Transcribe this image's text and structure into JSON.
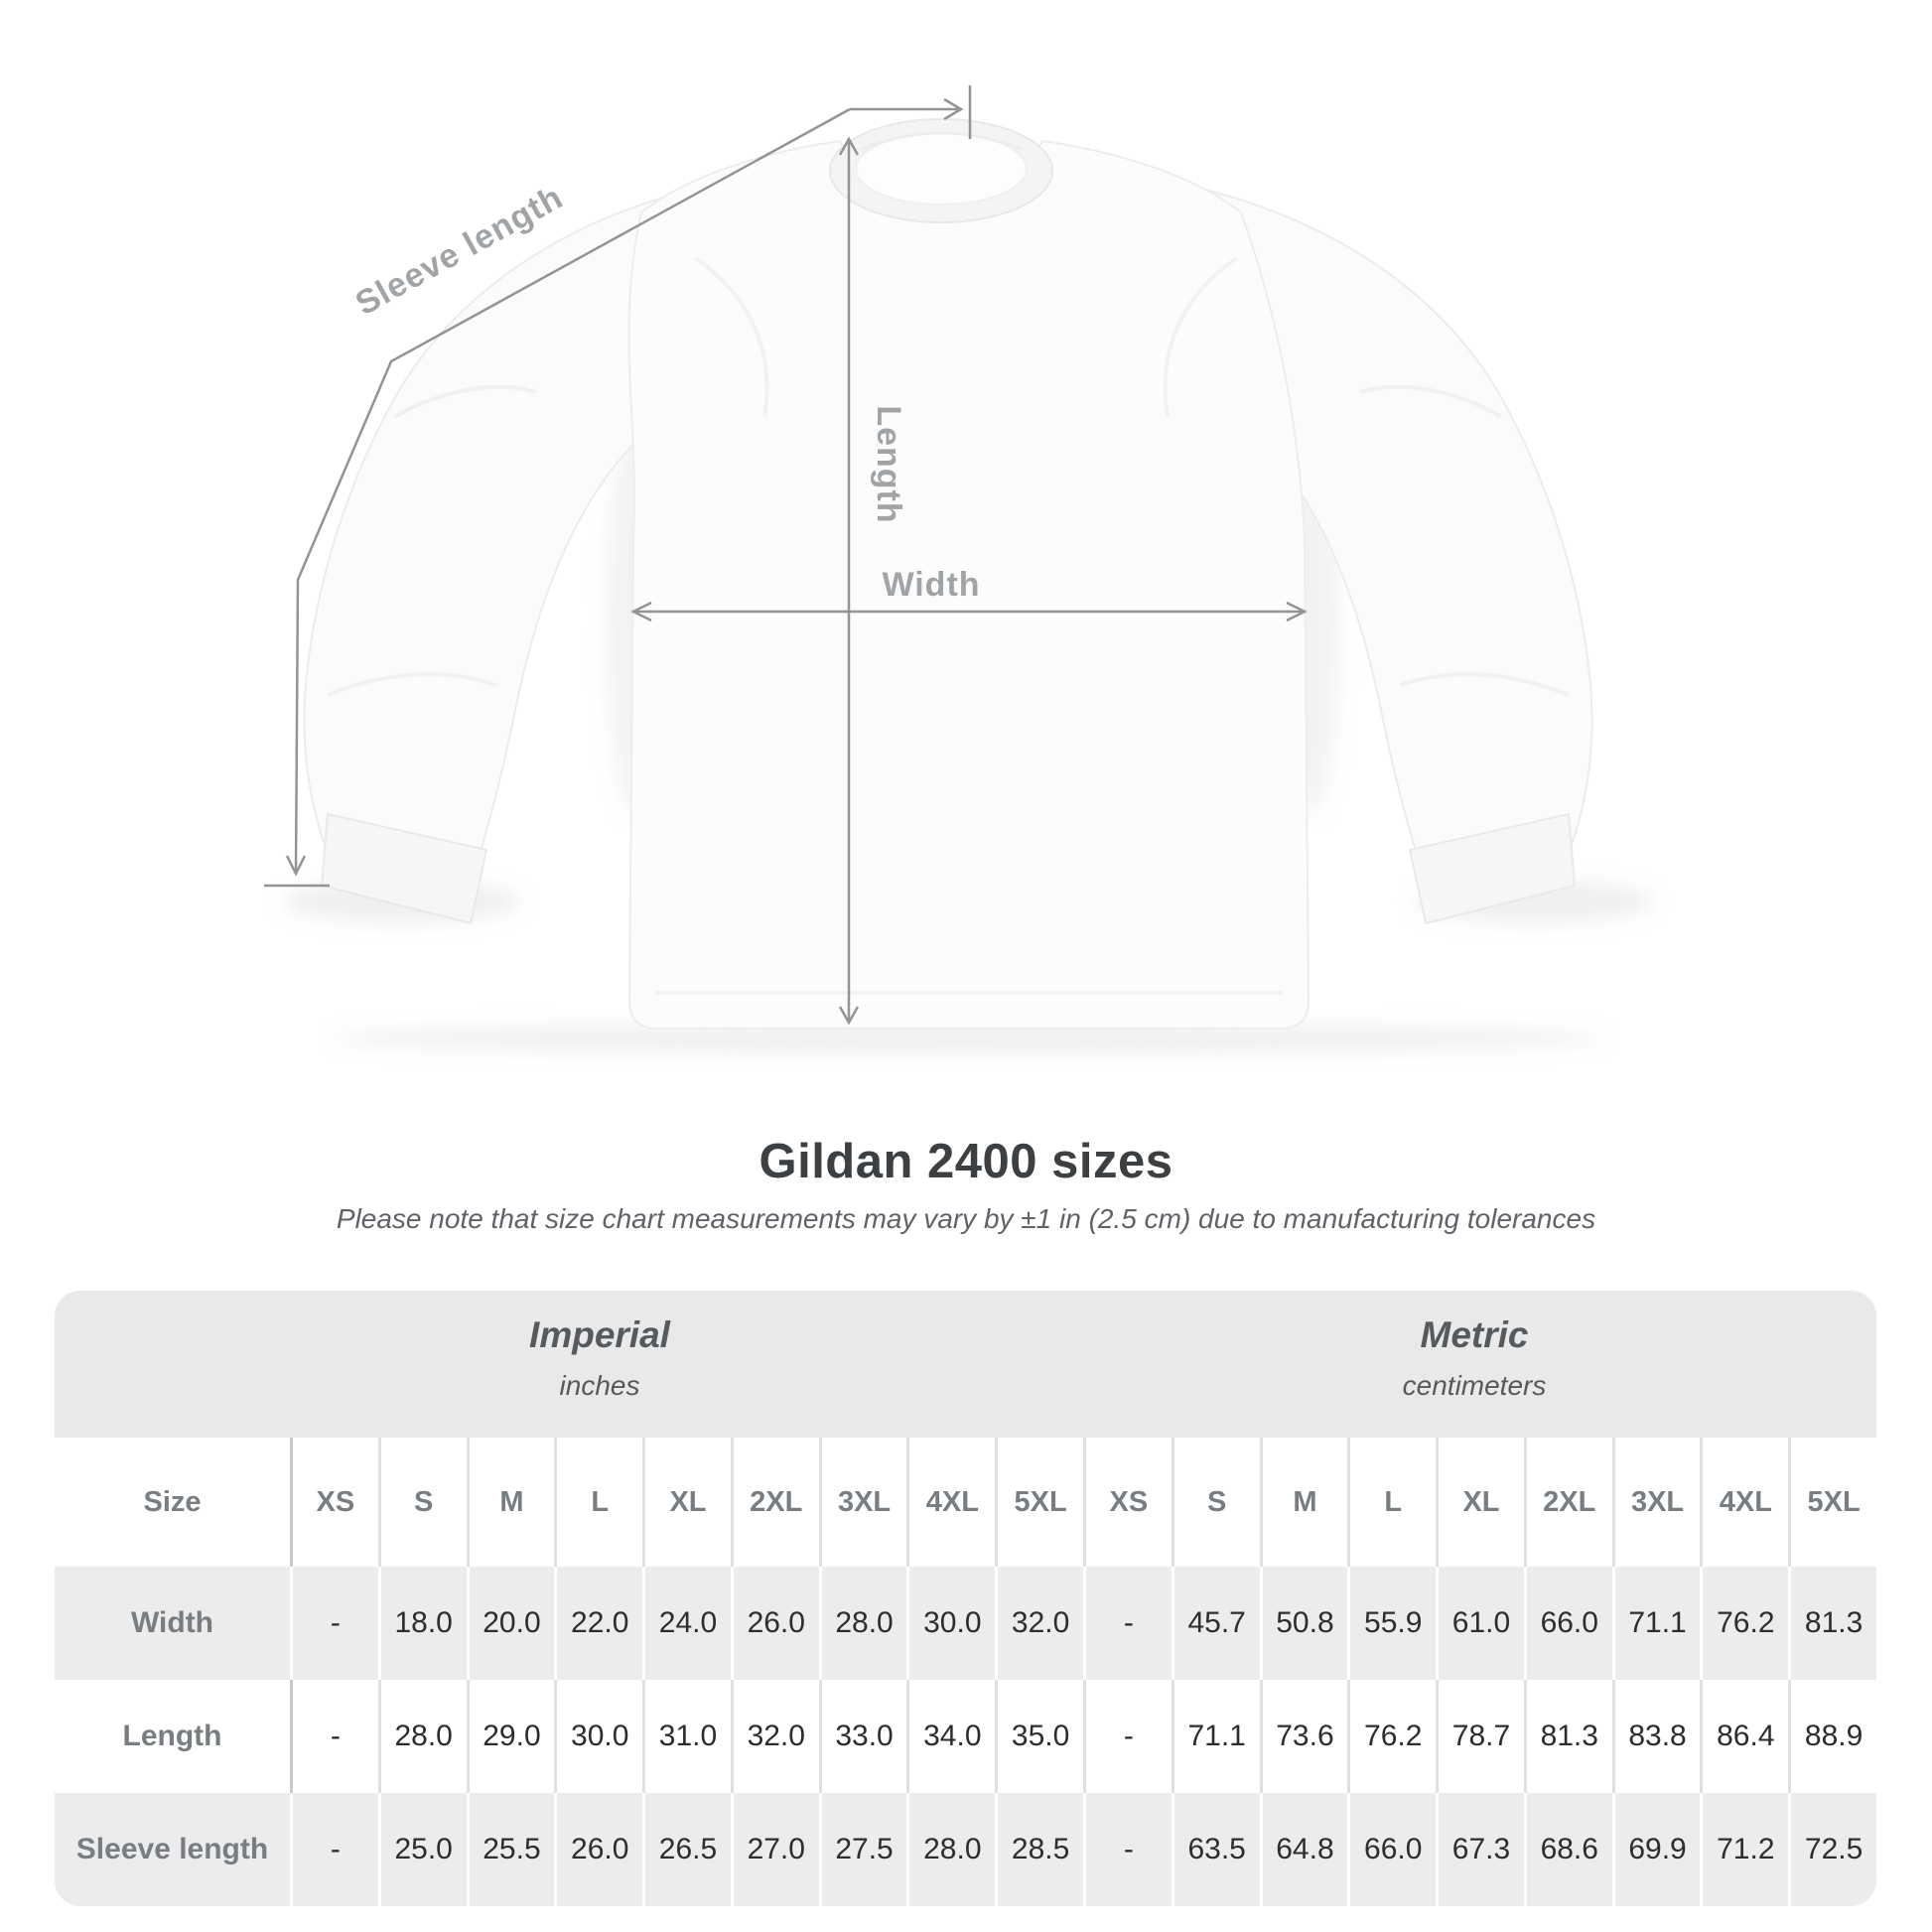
{
  "diagram": {
    "sleeve_length_label": "Sleeve length",
    "length_label": "Length",
    "width_label": "Width",
    "line_color": "#919497",
    "label_color": "#a0a4a7"
  },
  "title": "Gildan 2400 sizes",
  "subtitle": "Please note that size chart measurements may vary by ±1 in (2.5 cm) due to manufacturing tolerances",
  "table": {
    "unit_groups": [
      {
        "label": "Imperial",
        "sublabel": "inches"
      },
      {
        "label": "Metric",
        "sublabel": "centimeters"
      }
    ],
    "size_header_label": "Size",
    "sizes": [
      "XS",
      "S",
      "M",
      "L",
      "XL",
      "2XL",
      "3XL",
      "4XL",
      "5XL"
    ],
    "rows": [
      {
        "label": "Width",
        "imperial": [
          "-",
          "18.0",
          "20.0",
          "22.0",
          "24.0",
          "26.0",
          "28.0",
          "30.0",
          "32.0"
        ],
        "metric": [
          "-",
          "45.7",
          "50.8",
          "55.9",
          "61.0",
          "66.0",
          "71.1",
          "76.2",
          "81.3"
        ]
      },
      {
        "label": "Length",
        "imperial": [
          "-",
          "28.0",
          "29.0",
          "30.0",
          "31.0",
          "32.0",
          "33.0",
          "34.0",
          "35.0"
        ],
        "metric": [
          "-",
          "71.1",
          "73.6",
          "76.2",
          "78.7",
          "81.3",
          "83.8",
          "86.4",
          "88.9"
        ]
      },
      {
        "label": "Sleeve length",
        "imperial": [
          "-",
          "25.0",
          "25.5",
          "26.0",
          "26.5",
          "27.0",
          "27.5",
          "28.0",
          "28.5"
        ],
        "metric": [
          "-",
          "63.5",
          "64.8",
          "66.0",
          "67.3",
          "68.6",
          "69.9",
          "71.2",
          "72.5"
        ]
      }
    ]
  },
  "chart_data": {
    "type": "table",
    "title": "Gildan 2400 sizes",
    "columns": [
      "XS",
      "S",
      "M",
      "L",
      "XL",
      "2XL",
      "3XL",
      "4XL",
      "5XL"
    ],
    "series": [
      {
        "name": "Width (in)",
        "values": [
          null,
          18.0,
          20.0,
          22.0,
          24.0,
          26.0,
          28.0,
          30.0,
          32.0
        ]
      },
      {
        "name": "Length (in)",
        "values": [
          null,
          28.0,
          29.0,
          30.0,
          31.0,
          32.0,
          33.0,
          34.0,
          35.0
        ]
      },
      {
        "name": "Sleeve length (in)",
        "values": [
          null,
          25.0,
          25.5,
          26.0,
          26.5,
          27.0,
          27.5,
          28.0,
          28.5
        ]
      },
      {
        "name": "Width (cm)",
        "values": [
          null,
          45.7,
          50.8,
          55.9,
          61.0,
          66.0,
          71.1,
          76.2,
          81.3
        ]
      },
      {
        "name": "Length (cm)",
        "values": [
          null,
          71.1,
          73.6,
          76.2,
          78.7,
          81.3,
          83.8,
          86.4,
          88.9
        ]
      },
      {
        "name": "Sleeve length (cm)",
        "values": [
          null,
          63.5,
          64.8,
          66.0,
          67.3,
          68.6,
          69.9,
          71.2,
          72.5
        ]
      }
    ]
  },
  "colors": {
    "band": "#e9e9ea",
    "row_alt": "#ececed",
    "label_text": "#787d81",
    "value_text": "#2b2d2f",
    "measure_line": "#919497"
  }
}
